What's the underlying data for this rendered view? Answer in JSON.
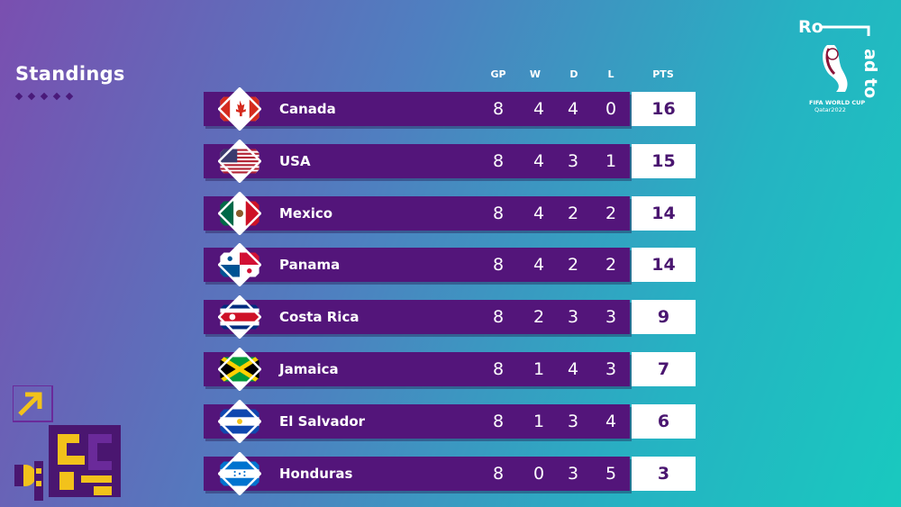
{
  "title": "Standings",
  "columns": {
    "gp": "GP",
    "w": "W",
    "d": "D",
    "l": "L",
    "pts": "PTS"
  },
  "logo": {
    "line1": "Ro",
    "line2": "ad to",
    "brand": "FIFA WORLD CUP",
    "host": "Qatar2022"
  },
  "teams": [
    {
      "name": "Canada",
      "gp": "8",
      "w": "4",
      "d": "4",
      "l": "0",
      "pts": "16",
      "flag": "canada-flag"
    },
    {
      "name": "USA",
      "gp": "8",
      "w": "4",
      "d": "3",
      "l": "1",
      "pts": "15",
      "flag": "usa-flag"
    },
    {
      "name": "Mexico",
      "gp": "8",
      "w": "4",
      "d": "2",
      "l": "2",
      "pts": "14",
      "flag": "mexico-flag"
    },
    {
      "name": "Panama",
      "gp": "8",
      "w": "4",
      "d": "2",
      "l": "2",
      "pts": "14",
      "flag": "panama-flag"
    },
    {
      "name": "Costa Rica",
      "gp": "8",
      "w": "2",
      "d": "3",
      "l": "3",
      "pts": "9",
      "flag": "costa-rica-flag"
    },
    {
      "name": "Jamaica",
      "gp": "8",
      "w": "1",
      "d": "4",
      "l": "3",
      "pts": "7",
      "flag": "jamaica-flag"
    },
    {
      "name": "El Salvador",
      "gp": "8",
      "w": "1",
      "d": "3",
      "l": "4",
      "pts": "6",
      "flag": "el-salvador-flag"
    },
    {
      "name": "Honduras",
      "gp": "8",
      "w": "0",
      "d": "3",
      "l": "5",
      "pts": "3",
      "flag": "honduras-flag"
    }
  ],
  "colors": {
    "bar": "#53157a",
    "pts_text": "#4a1670",
    "accent_yellow": "#f2c21b"
  }
}
